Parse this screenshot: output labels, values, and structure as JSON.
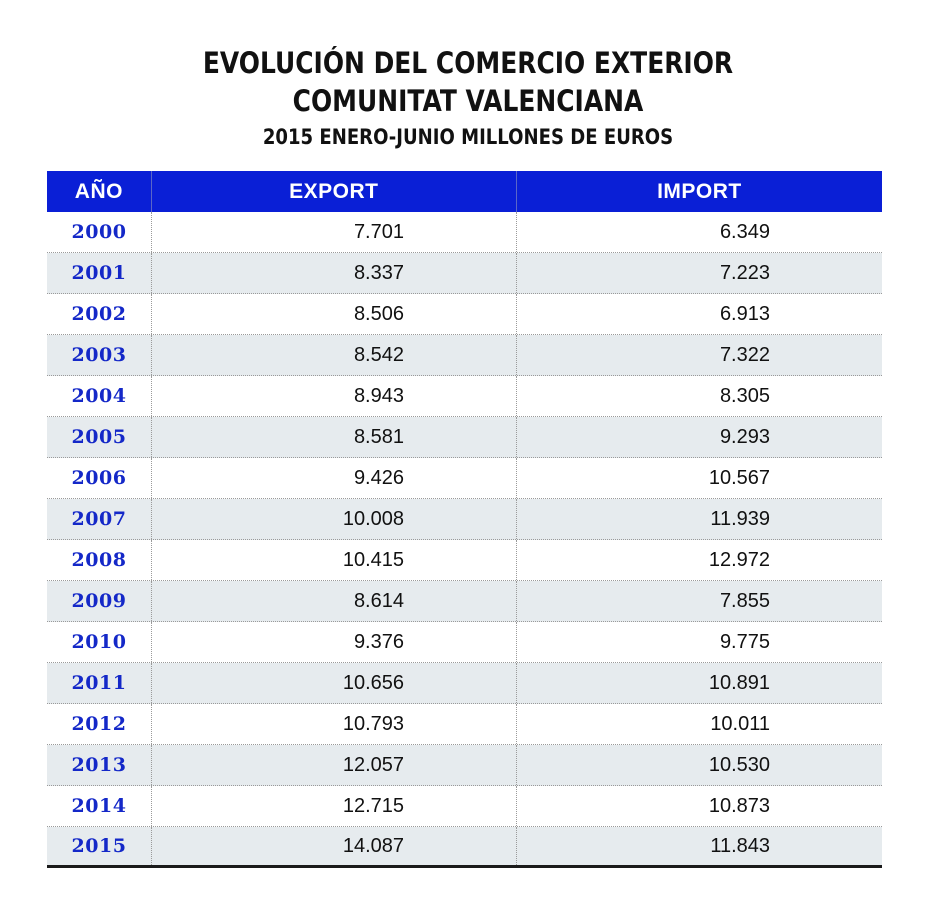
{
  "title": {
    "line1": "EVOLUCIÓN DEL COMERCIO EXTERIOR",
    "line2": "COMUNITAT VALENCIANA",
    "subtitle": "2015 ENERO-JUNIO MILLONES DE EUROS"
  },
  "colors": {
    "header_bg": "#0a1fd6",
    "header_text": "#ffffff",
    "year_text": "#1428c8",
    "alt_row_bg": "#e6ebee"
  },
  "table": {
    "headers": [
      "AÑO",
      "EXPORT",
      "IMPORT"
    ],
    "rows": [
      {
        "year": "2000",
        "export": "7.701",
        "import": "6.349"
      },
      {
        "year": "2001",
        "export": "8.337",
        "import": "7.223"
      },
      {
        "year": "2002",
        "export": "8.506",
        "import": "6.913"
      },
      {
        "year": "2003",
        "export": "8.542",
        "import": "7.322"
      },
      {
        "year": "2004",
        "export": "8.943",
        "import": "8.305"
      },
      {
        "year": "2005",
        "export": "8.581",
        "import": "9.293"
      },
      {
        "year": "2006",
        "export": "9.426",
        "import": "10.567"
      },
      {
        "year": "2007",
        "export": "10.008",
        "import": "11.939"
      },
      {
        "year": "2008",
        "export": "10.415",
        "import": "12.972"
      },
      {
        "year": "2009",
        "export": "8.614",
        "import": "7.855"
      },
      {
        "year": "2010",
        "export": "9.376",
        "import": "9.775"
      },
      {
        "year": "2011",
        "export": "10.656",
        "import": "10.891"
      },
      {
        "year": "2012",
        "export": "10.793",
        "import": "10.011"
      },
      {
        "year": "2013",
        "export": "12.057",
        "import": "10.530"
      },
      {
        "year": "2014",
        "export": "12.715",
        "import": "10.873"
      },
      {
        "year": "2015",
        "export": "14.087",
        "import": "11.843"
      }
    ]
  },
  "chart_data": {
    "type": "table",
    "title": "EVOLUCIÓN DEL COMERCIO EXTERIOR COMUNITAT VALENCIANA",
    "subtitle": "2015 ENERO-JUNIO MILLONES DE EUROS",
    "columns": [
      "AÑO",
      "EXPORT",
      "IMPORT"
    ],
    "categories": [
      "2000",
      "2001",
      "2002",
      "2003",
      "2004",
      "2005",
      "2006",
      "2007",
      "2008",
      "2009",
      "2010",
      "2011",
      "2012",
      "2013",
      "2014",
      "2015"
    ],
    "series": [
      {
        "name": "EXPORT",
        "values": [
          7701,
          8337,
          8506,
          8542,
          8943,
          8581,
          9426,
          10008,
          10415,
          8614,
          9376,
          10656,
          10793,
          12057,
          12715,
          14087
        ]
      },
      {
        "name": "IMPORT",
        "values": [
          6349,
          7223,
          6913,
          7322,
          8305,
          9293,
          10567,
          11939,
          12972,
          7855,
          9775,
          10891,
          10011,
          10530,
          10873,
          11843
        ]
      }
    ],
    "units": "millones de euros"
  }
}
